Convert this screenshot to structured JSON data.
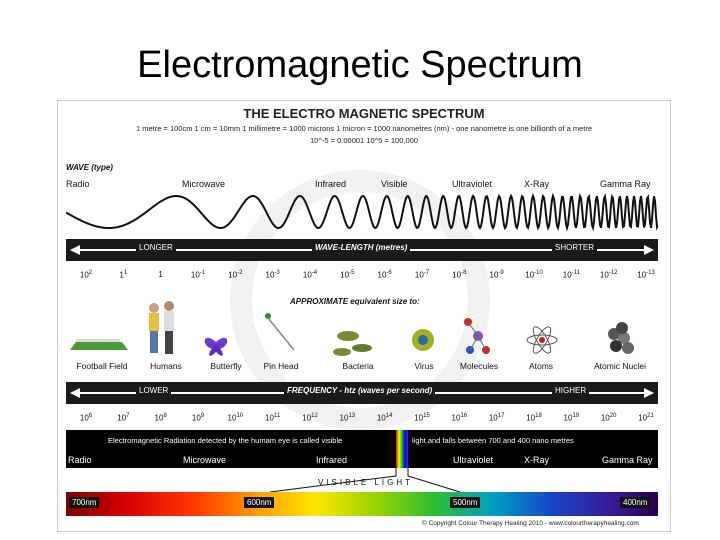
{
  "slide_title": "Electromagnetic Spectrum",
  "poster": {
    "title": "THE ELECTRO MAGNETIC SPECTRUM",
    "units_line": "1 metre = 100cm   1 cm = 10mm   1 millimetre = 1000 microns   1 micron = 1000 nanometres (nm) - one nanometre is one billionth of a metre",
    "powers_line": "10^-5 = 0.00001     10^5 = 100,000",
    "wave_type_label": "WAVE (type)",
    "wave_types": [
      "Radio",
      "Microwave",
      "Infrared",
      "Visible",
      "Ultraviolet",
      "X-Ray",
      "Gamma Ray"
    ],
    "wavelength": {
      "left": "LONGER",
      "center": "WAVE-LENGTH (metres)",
      "right": "SHORTER",
      "ticks": [
        {
          "base": "10",
          "exp": "2"
        },
        {
          "base": "1",
          "exp": "1"
        },
        {
          "base": "1",
          "exp": ""
        },
        {
          "base": "10",
          "exp": "-1"
        },
        {
          "base": "10",
          "exp": "-2"
        },
        {
          "base": "10",
          "exp": "-3"
        },
        {
          "base": "10",
          "exp": "-4"
        },
        {
          "base": "10",
          "exp": "-5"
        },
        {
          "base": "10",
          "exp": "-6"
        },
        {
          "base": "10",
          "exp": "-7"
        },
        {
          "base": "10",
          "exp": "-8"
        },
        {
          "base": "10",
          "exp": "-9"
        },
        {
          "base": "10",
          "exp": "-10"
        },
        {
          "base": "10",
          "exp": "-11"
        },
        {
          "base": "10",
          "exp": "-12"
        },
        {
          "base": "10",
          "exp": "-13"
        }
      ]
    },
    "size_label": "APPROXIMATE equivalent size to:",
    "objects": [
      "Football Field",
      "Humans",
      "Butterfly",
      "Pin Head",
      "Bacteria",
      "Virus",
      "Molecules",
      "Atoms",
      "Atomic Nuclei"
    ],
    "frequency": {
      "left": "LOWER",
      "center": "FREQUENCY - htz (waves per second)",
      "right": "HIGHER",
      "ticks": [
        {
          "base": "10",
          "exp": "6"
        },
        {
          "base": "10",
          "exp": "7"
        },
        {
          "base": "10",
          "exp": "8"
        },
        {
          "base": "10",
          "exp": "9"
        },
        {
          "base": "10",
          "exp": "10"
        },
        {
          "base": "10",
          "exp": "11"
        },
        {
          "base": "10",
          "exp": "12"
        },
        {
          "base": "10",
          "exp": "13"
        },
        {
          "base": "10",
          "exp": "14"
        },
        {
          "base": "10",
          "exp": "15"
        },
        {
          "base": "10",
          "exp": "16"
        },
        {
          "base": "10",
          "exp": "17"
        },
        {
          "base": "10",
          "exp": "18"
        },
        {
          "base": "10",
          "exp": "19"
        },
        {
          "base": "10",
          "exp": "20"
        },
        {
          "base": "10",
          "exp": "21"
        }
      ]
    },
    "eye_text_left": "Electromagnetic Radiation detected by the humam eye is called visible",
    "eye_text_right": "light and falls between 700 and 400 nano metres",
    "eye_bands": [
      "Radio",
      "Microwave",
      "Infrared",
      "Ultraviolet",
      "X-Ray",
      "Gamma Ray"
    ],
    "visible_light_label": "VISIBLE LIGHT",
    "nm_labels": [
      "700nm",
      "600nm",
      "500nm",
      "400nm"
    ],
    "copyright": "© Copyright Colour Therapy Healing 2010 - www.colourtherapyhealing.com"
  }
}
